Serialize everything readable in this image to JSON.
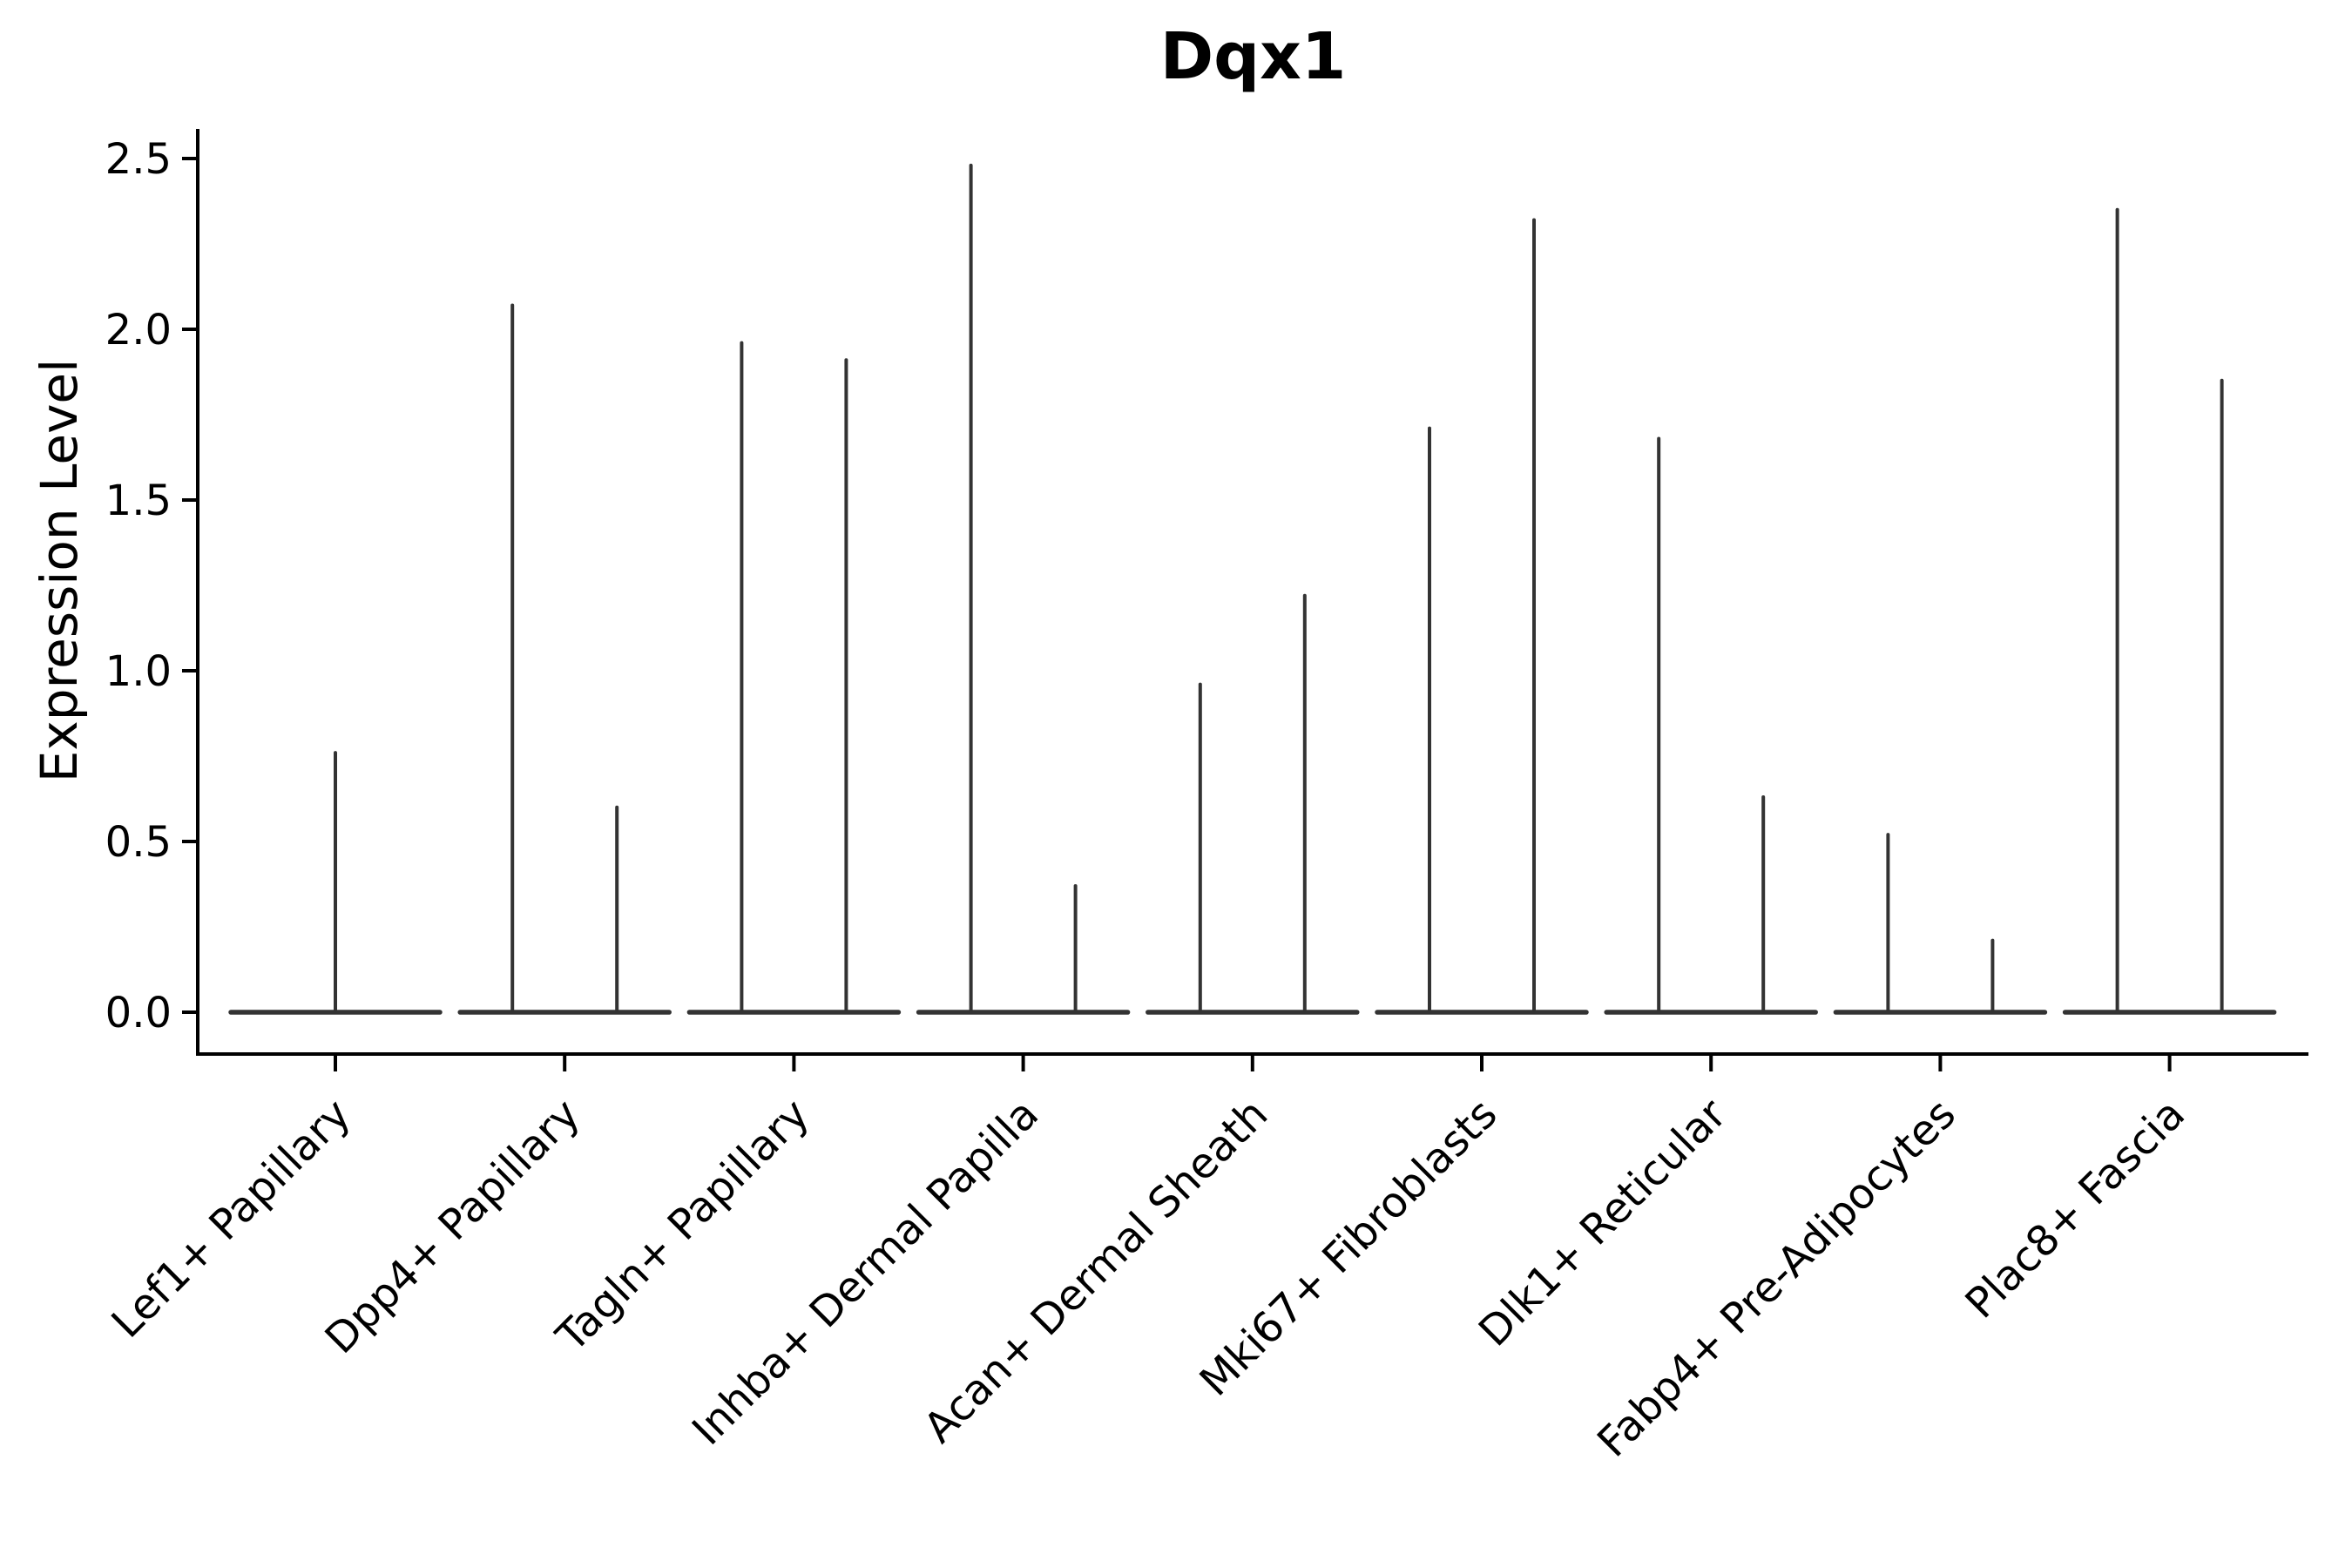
{
  "figure": {
    "background": "#ffffff"
  },
  "chart_data": {
    "type": "violin",
    "title": "Dqx1",
    "xlabel": "",
    "ylabel": "Expression Level",
    "ylim": [
      0,
      2.6
    ],
    "yticks": [
      0.0,
      0.5,
      1.0,
      1.5,
      2.0,
      2.5
    ],
    "grid": false,
    "legend": "none",
    "axis_color": "#000000",
    "line_color": "#333333",
    "background": "#ffffff",
    "categories": [
      "Lef1+ Papillary",
      "Dpp4+ Papillary",
      "Tagln+ Papillary",
      "Inhba+ Dermal Papilla",
      "Acan+ Dermal Sheath",
      "Mki67+ Fibroblasts",
      "Dlk1+ Reticular",
      "Fabp4+ Pre-Adipocytes",
      "Plac8+ Fascia"
    ],
    "violins": [
      {
        "category": "Lef1+ Papillary",
        "maxima": [
          0.76
        ]
      },
      {
        "category": "Dpp4+ Papillary",
        "maxima": [
          2.07,
          0.6
        ]
      },
      {
        "category": "Tagln+ Papillary",
        "maxima": [
          1.96,
          1.91
        ]
      },
      {
        "category": "Inhba+ Dermal Papilla",
        "maxima": [
          2.48,
          0.37
        ]
      },
      {
        "category": "Acan+ Dermal Sheath",
        "maxima": [
          0.96,
          1.22
        ]
      },
      {
        "category": "Mki67+ Fibroblasts",
        "maxima": [
          1.71,
          2.32
        ]
      },
      {
        "category": "Dlk1+ Reticular",
        "maxima": [
          1.68,
          0.63
        ]
      },
      {
        "category": "Fabp4+ Pre-Adipocytes",
        "maxima": [
          0.52,
          0.21
        ]
      },
      {
        "category": "Plac8+ Fascia",
        "maxima": [
          2.35,
          1.85
        ]
      }
    ],
    "baseline_value": 0.0,
    "layout_hints": {
      "x_tick_rotation_deg": 45,
      "violins_per_category": [
        1,
        2,
        2,
        2,
        2,
        2,
        2,
        2,
        2
      ]
    }
  }
}
